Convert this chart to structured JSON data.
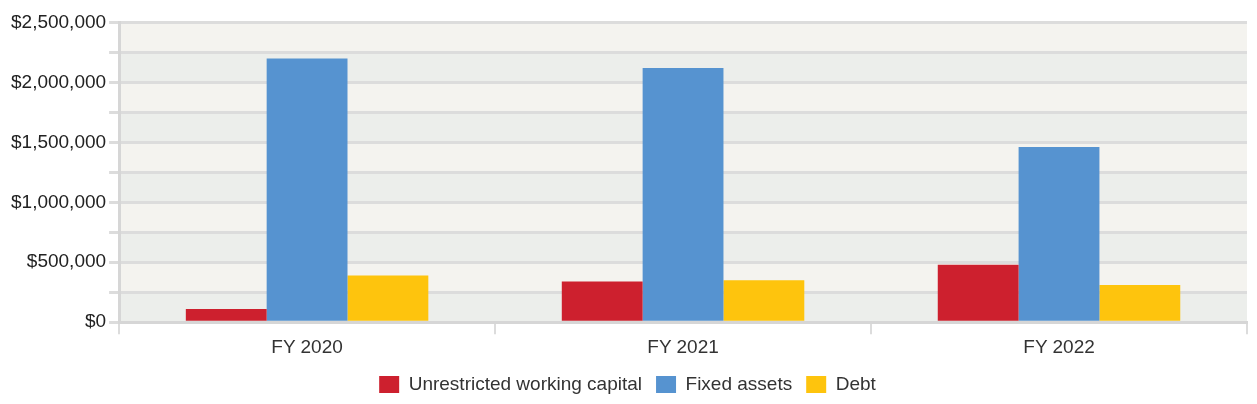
{
  "chart_data": {
    "type": "bar",
    "categories": [
      "FY 2020",
      "FY 2021",
      "FY 2022"
    ],
    "series": [
      {
        "name": "Unrestricted working capital",
        "color": "#cd202e",
        "values": [
          110000,
          340000,
          480000
        ]
      },
      {
        "name": "Fixed assets",
        "color": "#5693d0",
        "values": [
          2200000,
          2120000,
          1460000
        ]
      },
      {
        "name": "Debt",
        "color": "#fec40d",
        "values": [
          390000,
          350000,
          310000
        ]
      }
    ],
    "ylim": [
      0,
      2500000
    ],
    "yticks": [
      {
        "value": 0,
        "label": "$0"
      },
      {
        "value": 250000,
        "label": null
      },
      {
        "value": 500000,
        "label": "$500,000"
      },
      {
        "value": 750000,
        "label": null
      },
      {
        "value": 1000000,
        "label": "$1,000,000"
      },
      {
        "value": 1250000,
        "label": null
      },
      {
        "value": 1500000,
        "label": "$1,500,000"
      },
      {
        "value": 1750000,
        "label": null
      },
      {
        "value": 2000000,
        "label": "$2,000,000"
      },
      {
        "value": 2250000,
        "label": null
      },
      {
        "value": 2500000,
        "label": "$2,500,000"
      }
    ],
    "grid": "y",
    "legend": "bottom"
  }
}
